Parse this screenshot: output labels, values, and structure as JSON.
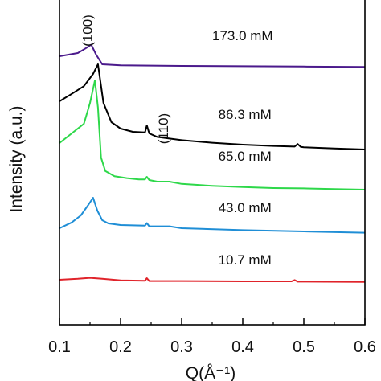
{
  "chart_data": {
    "type": "line",
    "xlabel": "Q(Å⁻¹)",
    "ylabel": "Intensity (a.u.)",
    "xlim": [
      0.1,
      0.6
    ],
    "xticks": [
      "0.1",
      "0.2",
      "0.3",
      "0.4",
      "0.5",
      "0.6"
    ],
    "y_ticks_shown": false,
    "peak_labels": [
      {
        "label": "(100)",
        "x": 0.16
      },
      {
        "label": "(110)",
        "x": 0.28
      }
    ],
    "series": [
      {
        "name": "173.0 mM",
        "color": "#4b1a8c",
        "x": [
          0.1,
          0.13,
          0.145,
          0.152,
          0.16,
          0.17,
          0.2,
          0.3,
          0.4,
          0.5,
          0.6
        ],
        "y": [
          0.835,
          0.845,
          0.862,
          0.871,
          0.84,
          0.81,
          0.807,
          0.805,
          0.804,
          0.803,
          0.802
        ]
      },
      {
        "name": "86.3 mM",
        "color": "#000000",
        "x": [
          0.1,
          0.12,
          0.14,
          0.155,
          0.163,
          0.172,
          0.185,
          0.2,
          0.22,
          0.24,
          0.243,
          0.247,
          0.26,
          0.3,
          0.35,
          0.4,
          0.45,
          0.485,
          0.49,
          0.495,
          0.5,
          0.55,
          0.6
        ],
        "y": [
          0.695,
          0.718,
          0.742,
          0.78,
          0.81,
          0.69,
          0.63,
          0.61,
          0.6,
          0.598,
          0.62,
          0.595,
          0.584,
          0.574,
          0.566,
          0.56,
          0.556,
          0.554,
          0.562,
          0.553,
          0.552,
          0.548,
          0.545
        ]
      },
      {
        "name": "65.0 mM",
        "color": "#2ed84a",
        "x": [
          0.1,
          0.12,
          0.14,
          0.15,
          0.158,
          0.163,
          0.168,
          0.175,
          0.19,
          0.21,
          0.23,
          0.24,
          0.243,
          0.247,
          0.26,
          0.28,
          0.3,
          0.35,
          0.4,
          0.45,
          0.5,
          0.55,
          0.6
        ],
        "y": [
          0.565,
          0.595,
          0.625,
          0.69,
          0.76,
          0.675,
          0.52,
          0.478,
          0.462,
          0.456,
          0.452,
          0.452,
          0.46,
          0.45,
          0.445,
          0.445,
          0.438,
          0.432,
          0.428,
          0.425,
          0.424,
          0.422,
          0.42
        ]
      },
      {
        "name": "43.0 mM",
        "color": "#1f8ed6",
        "x": [
          0.1,
          0.12,
          0.135,
          0.148,
          0.155,
          0.162,
          0.17,
          0.18,
          0.2,
          0.24,
          0.243,
          0.247,
          0.28,
          0.3,
          0.4,
          0.5,
          0.6
        ],
        "y": [
          0.3,
          0.318,
          0.34,
          0.375,
          0.395,
          0.355,
          0.325,
          0.315,
          0.31,
          0.308,
          0.316,
          0.306,
          0.306,
          0.3,
          0.294,
          0.29,
          0.286
        ]
      },
      {
        "name": "10.7 mM",
        "color": "#e0232a",
        "x": [
          0.1,
          0.13,
          0.15,
          0.17,
          0.2,
          0.24,
          0.243,
          0.247,
          0.3,
          0.4,
          0.48,
          0.485,
          0.49,
          0.5,
          0.6
        ],
        "y": [
          0.14,
          0.143,
          0.146,
          0.143,
          0.138,
          0.137,
          0.145,
          0.136,
          0.136,
          0.135,
          0.135,
          0.139,
          0.134,
          0.134,
          0.133
        ]
      }
    ],
    "series_labels": [
      {
        "text": "173.0 mM",
        "x": 0.35,
        "y": 0.885
      },
      {
        "text": "86.3 mM",
        "x": 0.36,
        "y": 0.64
      },
      {
        "text": "65.0 mM",
        "x": 0.36,
        "y": 0.51
      },
      {
        "text": "43.0 mM",
        "x": 0.36,
        "y": 0.35
      },
      {
        "text": "10.7 mM",
        "x": 0.36,
        "y": 0.188
      }
    ]
  }
}
